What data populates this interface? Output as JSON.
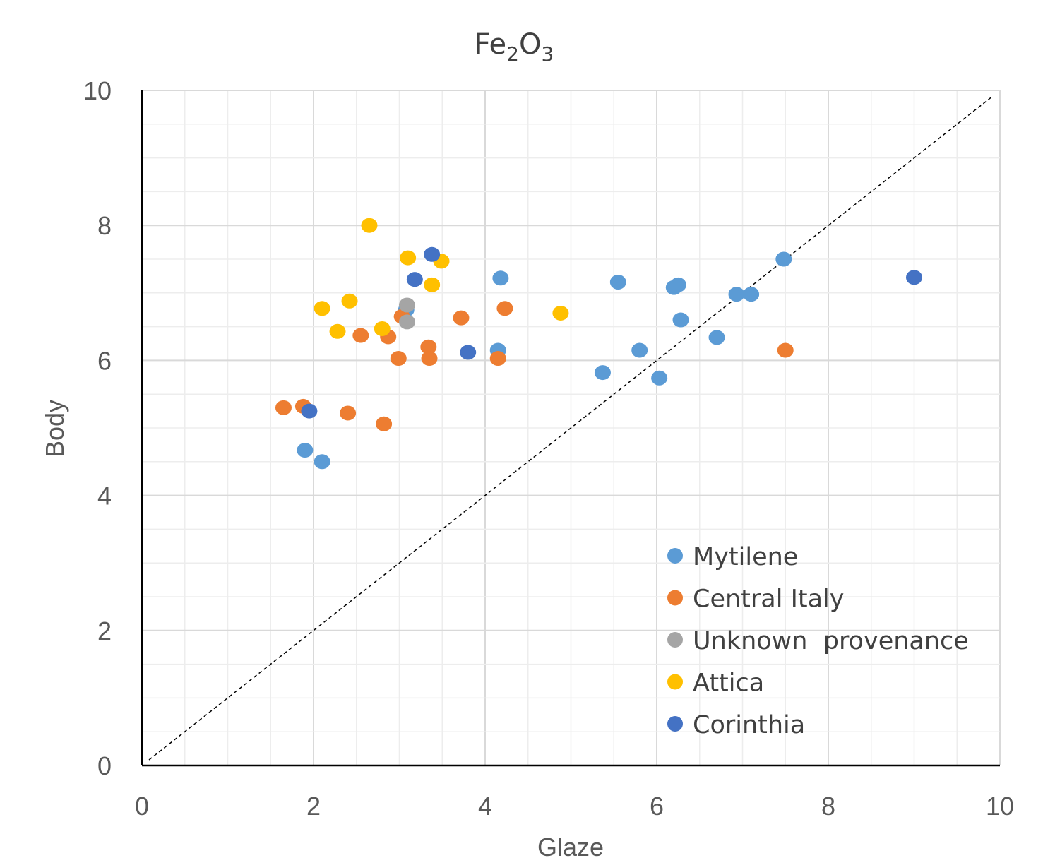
{
  "chart_data": {
    "type": "scatter",
    "title": {
      "main_a": "Fe",
      "sub_a": "2",
      "main_b": "O",
      "sub_b": "3"
    },
    "xlabel": "Glaze",
    "ylabel": "Body",
    "xlim": [
      0,
      10
    ],
    "ylim": [
      0,
      10
    ],
    "x_ticks": [
      "0",
      "2",
      "4",
      "6",
      "8",
      "10"
    ],
    "y_ticks": [
      "0",
      "2",
      "4",
      "6",
      "8",
      "10"
    ],
    "grid": "major and minor",
    "legend_position": "lower-right inside plot",
    "reference_line": {
      "style": "dashed",
      "from": [
        0,
        0
      ],
      "to": [
        10,
        10
      ]
    },
    "series": [
      {
        "name": "Mytilene",
        "color": "#5B9BD5",
        "points": [
          [
            1.9,
            4.67
          ],
          [
            2.1,
            4.5
          ],
          [
            4.18,
            7.22
          ],
          [
            4.15,
            6.15
          ],
          [
            5.55,
            7.16
          ],
          [
            5.37,
            5.82
          ],
          [
            5.8,
            6.15
          ],
          [
            6.2,
            7.08
          ],
          [
            6.25,
            7.12
          ],
          [
            6.28,
            6.6
          ],
          [
            6.03,
            5.74
          ],
          [
            6.7,
            6.34
          ],
          [
            6.93,
            6.98
          ],
          [
            7.1,
            6.98
          ],
          [
            7.48,
            7.5
          ],
          [
            3.08,
            6.75
          ]
        ]
      },
      {
        "name": "Central Italy",
        "color": "#ED7D31",
        "points": [
          [
            1.65,
            5.3
          ],
          [
            1.88,
            5.32
          ],
          [
            2.4,
            5.22
          ],
          [
            2.55,
            6.37
          ],
          [
            2.82,
            5.06
          ],
          [
            2.87,
            6.35
          ],
          [
            2.99,
            6.03
          ],
          [
            3.03,
            6.65
          ],
          [
            3.34,
            6.2
          ],
          [
            3.35,
            6.03
          ],
          [
            3.72,
            6.63
          ],
          [
            4.23,
            6.77
          ],
          [
            4.15,
            6.03
          ],
          [
            7.5,
            6.15
          ]
        ]
      },
      {
        "name": "Unknown  provenance",
        "color": "#A5A5A5",
        "points": [
          [
            3.09,
            6.82
          ],
          [
            3.09,
            6.57
          ]
        ]
      },
      {
        "name": "Attica",
        "color": "#FFC000",
        "points": [
          [
            2.65,
            8.0
          ],
          [
            2.1,
            6.77
          ],
          [
            2.28,
            6.43
          ],
          [
            2.42,
            6.88
          ],
          [
            2.8,
            6.47
          ],
          [
            3.1,
            7.52
          ],
          [
            3.38,
            7.12
          ],
          [
            3.49,
            7.47
          ],
          [
            4.88,
            6.7
          ]
        ]
      },
      {
        "name": "Corinthia",
        "color": "#4472C4",
        "points": [
          [
            1.95,
            5.25
          ],
          [
            3.18,
            7.2
          ],
          [
            3.38,
            7.57
          ],
          [
            3.8,
            6.12
          ],
          [
            9.0,
            7.23
          ]
        ]
      }
    ]
  }
}
